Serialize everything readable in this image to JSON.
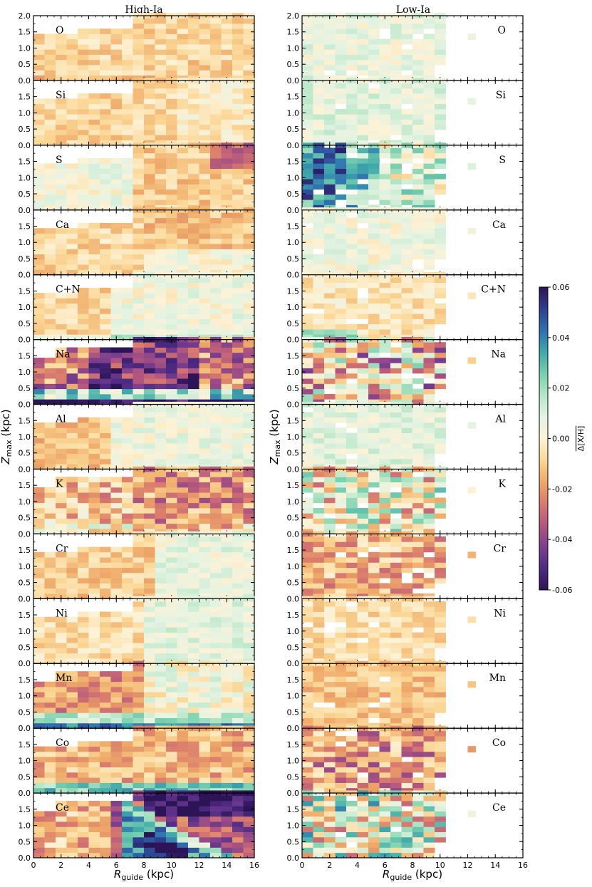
{
  "chart_data": {
    "type": "heatmap",
    "columns": [
      {
        "title": "High-Ia",
        "has_ylabel": true
      },
      {
        "title": "Low-Ia",
        "has_ylabel": true
      }
    ],
    "xlabel": {
      "symbol": "R",
      "sub": "guide",
      "unit": "(kpc)"
    },
    "ylabel": {
      "symbol": "Z",
      "sub": "max",
      "unit": "(kpc)"
    },
    "xlim": [
      0,
      16
    ],
    "ylim": [
      0,
      2
    ],
    "xticks": [
      "0",
      "2",
      "4",
      "6",
      "8",
      "10",
      "12",
      "14",
      "16"
    ],
    "yticks_top": [
      "0.0",
      "0.5",
      "1.0",
      "1.5",
      "2.0"
    ],
    "yticks_other": [
      "0.0",
      "0.5",
      "1.0",
      "1.5"
    ],
    "colorbar": {
      "label": "Δ[X/H]",
      "range": [
        -0.06,
        0.06
      ],
      "ticks": [
        "-0.06",
        "-0.04",
        "-0.02",
        "0.00",
        "0.02",
        "0.04",
        "0.06"
      ],
      "colormap_stops": [
        "#2c1456",
        "#4d2a83",
        "#7c3f8e",
        "#b2567f",
        "#d97a6e",
        "#eea868",
        "#fbd796",
        "#fdf2d6",
        "#e4f3e2",
        "#b6e6c6",
        "#78cfae",
        "#3fa7ab",
        "#2f6fb0",
        "#2d3f8d",
        "#2c1456"
      ]
    },
    "panels": [
      {
        "element": "O",
        "high": {
          "pattern": "O"
        },
        "low": {
          "pattern": "O_low"
        }
      },
      {
        "element": "Si",
        "high": {
          "pattern": "Si"
        },
        "low": {
          "pattern": "Si_low"
        }
      },
      {
        "element": "S",
        "high": {
          "pattern": "S"
        },
        "low": {
          "pattern": "S_low"
        }
      },
      {
        "element": "Ca",
        "high": {
          "pattern": "Ca"
        },
        "low": {
          "pattern": "Ca_low"
        }
      },
      {
        "element": "C+N",
        "high": {
          "pattern": "CN"
        },
        "low": {
          "pattern": "CN_low"
        }
      },
      {
        "element": "Na",
        "high": {
          "pattern": "Na"
        },
        "low": {
          "pattern": "Na_low"
        }
      },
      {
        "element": "Al",
        "high": {
          "pattern": "Al"
        },
        "low": {
          "pattern": "Al_low"
        }
      },
      {
        "element": "K",
        "high": {
          "pattern": "K"
        },
        "low": {
          "pattern": "K_low"
        }
      },
      {
        "element": "Cr",
        "high": {
          "pattern": "Cr"
        },
        "low": {
          "pattern": "Cr_low"
        }
      },
      {
        "element": "Ni",
        "high": {
          "pattern": "Ni"
        },
        "low": {
          "pattern": "Ni_low"
        }
      },
      {
        "element": "Mn",
        "high": {
          "pattern": "Mn"
        },
        "low": {
          "pattern": "Mn_low"
        }
      },
      {
        "element": "Co",
        "high": {
          "pattern": "Co"
        },
        "low": {
          "pattern": "Co_low"
        }
      },
      {
        "element": "Ce",
        "high": {
          "pattern": "Ce"
        },
        "low": {
          "pattern": "Ce_low"
        }
      }
    ]
  }
}
